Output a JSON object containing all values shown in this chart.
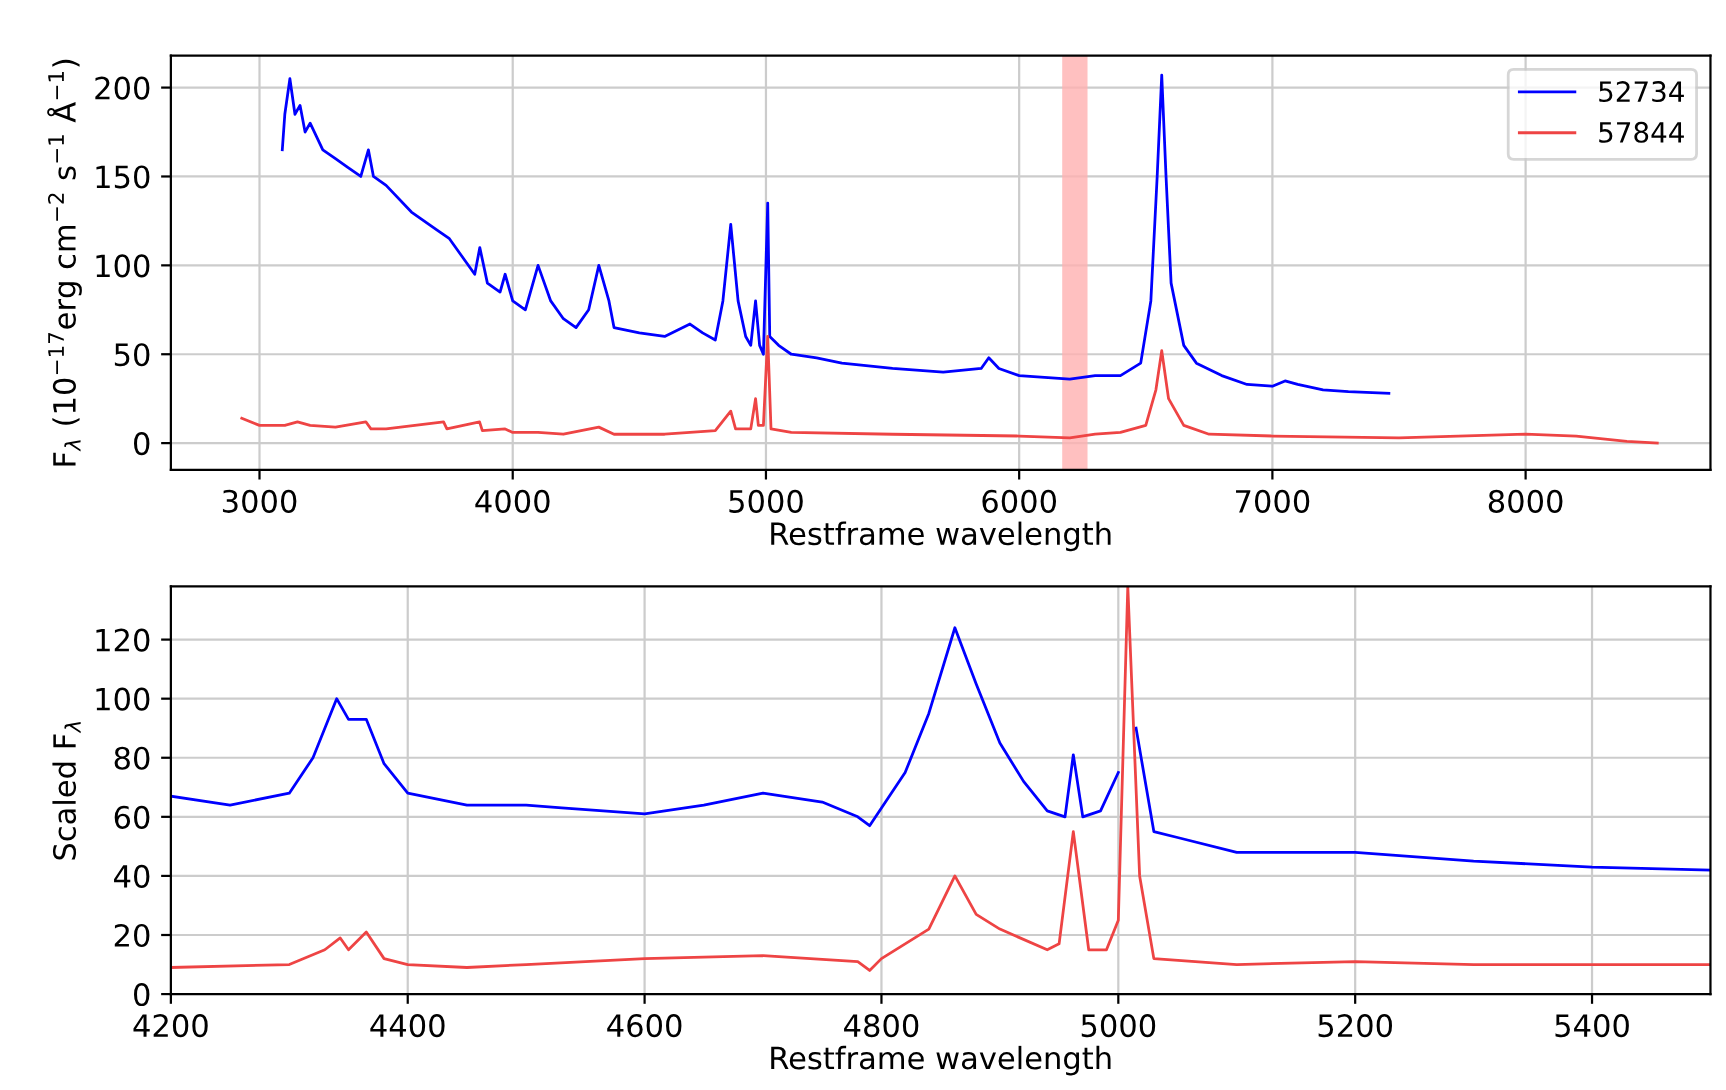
{
  "chart_data": [
    {
      "type": "line",
      "xlabel": "Restframe wavelength",
      "ylabel": "F$_{λ}$ (10$^{−17}$erg cm$^{−2}$ s$^{−1}$ Å$^{−1}$)",
      "xlim": [
        2650,
        8730
      ],
      "ylim": [
        -15,
        218
      ],
      "xticks": [
        3000,
        4000,
        5000,
        6000,
        7000,
        8000
      ],
      "yticks": [
        0,
        50,
        100,
        150,
        200
      ],
      "grid": true,
      "legend": "top right",
      "bands": [
        {
          "axis": "x",
          "from": 6170,
          "to": 6270,
          "color": "#ffb0b0"
        }
      ],
      "series": [
        {
          "name": "52734",
          "color": "#0000ff",
          "x": [
            3090,
            3100,
            3120,
            3140,
            3160,
            3180,
            3200,
            3250,
            3300,
            3350,
            3400,
            3430,
            3450,
            3500,
            3600,
            3700,
            3750,
            3800,
            3850,
            3870,
            3900,
            3950,
            3970,
            4000,
            4050,
            4100,
            4150,
            4200,
            4250,
            4300,
            4340,
            4380,
            4400,
            4500,
            4600,
            4700,
            4750,
            4800,
            4830,
            4861,
            4890,
            4920,
            4940,
            4959,
            4975,
            4990,
            5007,
            5015,
            5050,
            5100,
            5200,
            5300,
            5500,
            5700,
            5850,
            5880,
            5920,
            6000,
            6100,
            6200,
            6300,
            6400,
            6480,
            6520,
            6545,
            6563,
            6580,
            6600,
            6650,
            6700,
            6800,
            6900,
            7000,
            7050,
            7100,
            7200,
            7300,
            7460
          ],
          "values": [
            165,
            185,
            205,
            185,
            190,
            175,
            180,
            165,
            160,
            155,
            150,
            165,
            150,
            145,
            130,
            120,
            115,
            105,
            95,
            110,
            90,
            85,
            95,
            80,
            75,
            100,
            80,
            70,
            65,
            75,
            100,
            80,
            65,
            62,
            60,
            67,
            62,
            58,
            80,
            123,
            80,
            60,
            55,
            80,
            55,
            50,
            135,
            60,
            55,
            50,
            48,
            45,
            42,
            40,
            42,
            48,
            42,
            38,
            37,
            36,
            38,
            38,
            45,
            80,
            150,
            207,
            150,
            90,
            55,
            45,
            38,
            33,
            32,
            35,
            33,
            30,
            29,
            28
          ]
        },
        {
          "name": "57844",
          "color": "#ee4444",
          "x": [
            2930,
            3000,
            3100,
            3150,
            3200,
            3300,
            3420,
            3440,
            3500,
            3727,
            3740,
            3869,
            3880,
            3970,
            4000,
            4100,
            4200,
            4340,
            4400,
            4600,
            4700,
            4800,
            4861,
            4880,
            4940,
            4959,
            4970,
            4990,
            5007,
            5020,
            5100,
            5500,
            6000,
            6200,
            6300,
            6400,
            6500,
            6540,
            6563,
            6590,
            6650,
            6750,
            7000,
            7500,
            8000,
            8200,
            8400,
            8520
          ],
          "values": [
            14,
            10,
            10,
            12,
            10,
            9,
            12,
            8,
            8,
            12,
            8,
            12,
            7,
            8,
            6,
            6,
            5,
            9,
            5,
            5,
            6,
            7,
            18,
            8,
            8,
            25,
            10,
            10,
            60,
            8,
            6,
            5,
            4,
            3,
            5,
            6,
            10,
            30,
            52,
            25,
            10,
            5,
            4,
            3,
            5,
            4,
            1,
            0
          ]
        }
      ]
    },
    {
      "type": "line",
      "xlabel": "Restframe wavelength",
      "ylabel": "Scaled F$_{λ}$",
      "xlim": [
        4200,
        5500
      ],
      "ylim": [
        0,
        138
      ],
      "xticks": [
        4200,
        4400,
        4600,
        4800,
        5000,
        5200,
        5400
      ],
      "yticks": [
        0,
        20,
        40,
        60,
        80,
        100,
        120
      ],
      "grid": true,
      "series": [
        {
          "color": "#0000ff",
          "x": [
            4200,
            4250,
            4300,
            4320,
            4340,
            4350,
            4365,
            4380,
            4400,
            4450,
            4500,
            4530,
            4600,
            4650,
            4700,
            4750,
            4780,
            4790,
            4800,
            4820,
            4840,
            4862,
            4880,
            4900,
            4920,
            4940,
            4955,
            4962,
            4970,
            4985,
            5000,
            5008,
            5015,
            5030,
            5050,
            5100,
            5200,
            5300,
            5400,
            5500
          ],
          "values": [
            67,
            64,
            68,
            80,
            100,
            93,
            93,
            78,
            68,
            64,
            64,
            63,
            61,
            64,
            68,
            65,
            60,
            57,
            63,
            75,
            95,
            124,
            105,
            85,
            72,
            62,
            60,
            81,
            60,
            62,
            75,
            null,
            90,
            55,
            53,
            48,
            48,
            45,
            43,
            42
          ]
        },
        {
          "color": "#ee4444",
          "x": [
            4200,
            4300,
            4330,
            4343,
            4350,
            4365,
            4380,
            4400,
            4450,
            4500,
            4600,
            4700,
            4780,
            4790,
            4800,
            4840,
            4862,
            4880,
            4900,
            4940,
            4950,
            4962,
            4975,
            4990,
            5000,
            5008,
            5018,
            5030,
            5100,
            5200,
            5300,
            5500
          ],
          "values": [
            9,
            10,
            15,
            19,
            15,
            21,
            12,
            10,
            9,
            10,
            12,
            13,
            11,
            8,
            12,
            22,
            40,
            27,
            22,
            15,
            17,
            55,
            15,
            15,
            25,
            138,
            40,
            12,
            10,
            11,
            10,
            10
          ]
        }
      ]
    }
  ]
}
